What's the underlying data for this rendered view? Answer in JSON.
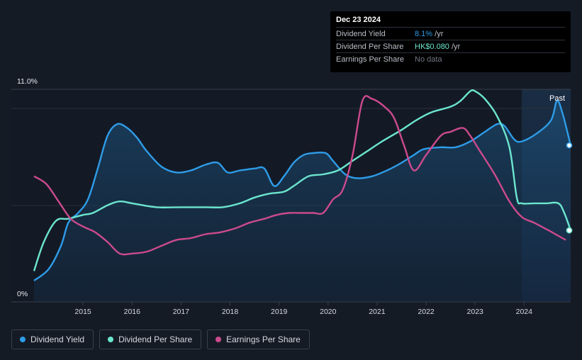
{
  "tooltip": {
    "date": "Dec 23 2024",
    "rows": [
      {
        "label": "Dividend Yield",
        "value": "8.1%",
        "unit": " /yr"
      },
      {
        "label": "Dividend Per Share",
        "value": "HK$0.080",
        "unit": " /yr"
      },
      {
        "label": "Earnings Per Share",
        "value": "No data",
        "unit": ""
      }
    ]
  },
  "colors": {
    "background": "#151b25",
    "dividend_yield": "#2e9ce8",
    "dividend_per_share": "#6ce6cf",
    "earnings_per_share": "#cc4a8d"
  },
  "chart_data": {
    "type": "line",
    "y_top_label": "11.0%",
    "y_bottom_label": "0%",
    "past_label": "Past",
    "ylim": [
      0,
      11
    ],
    "x_ticks": [
      "2015",
      "2016",
      "2017",
      "2018",
      "2019",
      "2020",
      "2021",
      "2022",
      "2023",
      "2024"
    ],
    "series": [
      {
        "name": "Dividend Yield",
        "fill": true,
        "points": [
          [
            2014.0,
            1.1
          ],
          [
            2014.3,
            1.7
          ],
          [
            2014.55,
            2.9
          ],
          [
            2014.7,
            4.1
          ],
          [
            2014.9,
            4.6
          ],
          [
            2015.1,
            5.3
          ],
          [
            2015.3,
            6.9
          ],
          [
            2015.5,
            8.6
          ],
          [
            2015.7,
            9.2
          ],
          [
            2015.9,
            9.0
          ],
          [
            2016.1,
            8.5
          ],
          [
            2016.3,
            7.8
          ],
          [
            2016.6,
            7.0
          ],
          [
            2016.9,
            6.7
          ],
          [
            2017.2,
            6.8
          ],
          [
            2017.5,
            7.1
          ],
          [
            2017.75,
            7.2
          ],
          [
            2017.95,
            6.7
          ],
          [
            2018.2,
            6.8
          ],
          [
            2018.5,
            6.9
          ],
          [
            2018.7,
            6.9
          ],
          [
            2018.9,
            6.0
          ],
          [
            2019.1,
            6.5
          ],
          [
            2019.3,
            7.2
          ],
          [
            2019.5,
            7.6
          ],
          [
            2019.7,
            7.7
          ],
          [
            2019.95,
            7.7
          ],
          [
            2020.1,
            7.3
          ],
          [
            2020.35,
            6.6
          ],
          [
            2020.6,
            6.4
          ],
          [
            2020.9,
            6.5
          ],
          [
            2021.2,
            6.8
          ],
          [
            2021.5,
            7.2
          ],
          [
            2021.75,
            7.6
          ],
          [
            2021.95,
            7.9
          ],
          [
            2022.3,
            8.0
          ],
          [
            2022.6,
            8.0
          ],
          [
            2022.9,
            8.3
          ],
          [
            2023.2,
            8.8
          ],
          [
            2023.45,
            9.2
          ],
          [
            2023.6,
            9.1
          ],
          [
            2023.8,
            8.4
          ],
          [
            2023.95,
            8.3
          ],
          [
            2024.25,
            8.7
          ],
          [
            2024.55,
            9.4
          ],
          [
            2024.67,
            10.4
          ],
          [
            2024.78,
            9.8
          ],
          [
            2024.95,
            8.1
          ]
        ]
      },
      {
        "name": "Dividend Per Share",
        "fill": false,
        "points": [
          [
            2014.0,
            1.6
          ],
          [
            2014.2,
            3.1
          ],
          [
            2014.45,
            4.2
          ],
          [
            2014.7,
            4.3
          ],
          [
            2015.0,
            4.5
          ],
          [
            2015.2,
            4.6
          ],
          [
            2015.5,
            5.0
          ],
          [
            2015.75,
            5.2
          ],
          [
            2016.0,
            5.1
          ],
          [
            2016.5,
            4.9
          ],
          [
            2017.0,
            4.9
          ],
          [
            2017.5,
            4.9
          ],
          [
            2017.85,
            4.9
          ],
          [
            2018.2,
            5.1
          ],
          [
            2018.5,
            5.4
          ],
          [
            2018.8,
            5.6
          ],
          [
            2019.1,
            5.7
          ],
          [
            2019.3,
            6.0
          ],
          [
            2019.6,
            6.5
          ],
          [
            2019.9,
            6.6
          ],
          [
            2020.2,
            6.8
          ],
          [
            2020.5,
            7.3
          ],
          [
            2020.8,
            7.8
          ],
          [
            2021.1,
            8.3
          ],
          [
            2021.5,
            8.9
          ],
          [
            2021.8,
            9.4
          ],
          [
            2022.1,
            9.8
          ],
          [
            2022.5,
            10.1
          ],
          [
            2022.7,
            10.4
          ],
          [
            2022.9,
            10.9
          ],
          [
            2023.0,
            10.9
          ],
          [
            2023.2,
            10.5
          ],
          [
            2023.45,
            9.6
          ],
          [
            2023.7,
            8.0
          ],
          [
            2023.85,
            5.4
          ],
          [
            2023.95,
            5.1
          ],
          [
            2024.2,
            5.1
          ],
          [
            2024.45,
            5.1
          ],
          [
            2024.7,
            5.1
          ],
          [
            2024.82,
            4.6
          ],
          [
            2024.95,
            3.7
          ]
        ]
      },
      {
        "name": "Earnings Per Share",
        "fill": false,
        "points": [
          [
            2014.0,
            6.5
          ],
          [
            2014.25,
            6.1
          ],
          [
            2014.5,
            5.2
          ],
          [
            2014.75,
            4.3
          ],
          [
            2015.0,
            3.9
          ],
          [
            2015.25,
            3.6
          ],
          [
            2015.5,
            3.1
          ],
          [
            2015.75,
            2.5
          ],
          [
            2016.0,
            2.5
          ],
          [
            2016.3,
            2.6
          ],
          [
            2016.6,
            2.9
          ],
          [
            2016.9,
            3.2
          ],
          [
            2017.2,
            3.3
          ],
          [
            2017.5,
            3.5
          ],
          [
            2017.8,
            3.6
          ],
          [
            2018.1,
            3.8
          ],
          [
            2018.4,
            4.1
          ],
          [
            2018.7,
            4.3
          ],
          [
            2018.95,
            4.5
          ],
          [
            2019.2,
            4.6
          ],
          [
            2019.45,
            4.6
          ],
          [
            2019.7,
            4.6
          ],
          [
            2019.9,
            4.6
          ],
          [
            2020.1,
            5.3
          ],
          [
            2020.3,
            5.8
          ],
          [
            2020.5,
            7.6
          ],
          [
            2020.7,
            10.4
          ],
          [
            2020.9,
            10.5
          ],
          [
            2021.15,
            10.1
          ],
          [
            2021.35,
            9.5
          ],
          [
            2021.55,
            8.1
          ],
          [
            2021.75,
            6.8
          ],
          [
            2022.0,
            7.6
          ],
          [
            2022.3,
            8.6
          ],
          [
            2022.5,
            8.8
          ],
          [
            2022.75,
            9.0
          ],
          [
            2022.9,
            8.6
          ],
          [
            2023.1,
            7.8
          ],
          [
            2023.4,
            6.6
          ],
          [
            2023.7,
            5.2
          ],
          [
            2023.95,
            4.4
          ],
          [
            2024.2,
            4.1
          ],
          [
            2024.5,
            3.7
          ],
          [
            2024.85,
            3.2
          ]
        ]
      }
    ]
  },
  "legend": [
    {
      "label": "Dividend Yield"
    },
    {
      "label": "Dividend Per Share"
    },
    {
      "label": "Earnings Per Share"
    }
  ]
}
